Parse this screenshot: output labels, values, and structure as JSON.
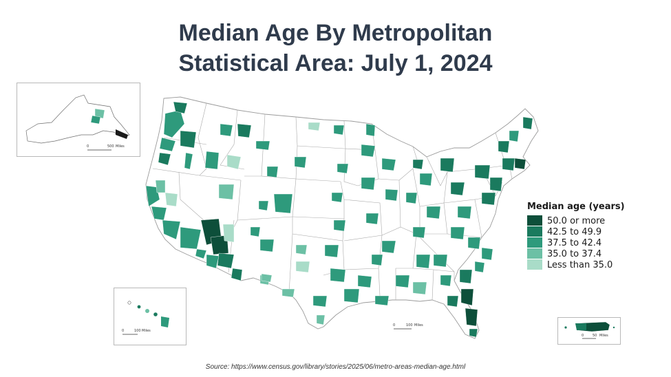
{
  "title_line1": "Median Age By Metropolitan",
  "title_line2": "Statistical Area: July 1, 2024",
  "legend": {
    "title": "Median age (years)",
    "items": [
      {
        "label": "50.0 or more",
        "color": "#0d4f3a"
      },
      {
        "label": "42.5 to 49.9",
        "color": "#1a7a5e"
      },
      {
        "label": "37.5 to 42.4",
        "color": "#2e9a7c"
      },
      {
        "label": "35.0 to 37.4",
        "color": "#6cc0a5"
      },
      {
        "label": "Less than 35.0",
        "color": "#a9dcc8"
      }
    ]
  },
  "scale_bars": {
    "alaska": {
      "zero": "0",
      "distance": "500",
      "unit": "Miles"
    },
    "hawaii": {
      "zero": "0",
      "distance": "100",
      "unit": "Miles"
    },
    "conus": {
      "zero": "0",
      "distance": "100",
      "unit": "Miles"
    },
    "puerto_rico": {
      "zero": "0",
      "distance": "50",
      "unit": "Miles"
    }
  },
  "source": "Source: https://www.census.gov/library/stories/2025/06/metro-areas-median-age.html"
}
